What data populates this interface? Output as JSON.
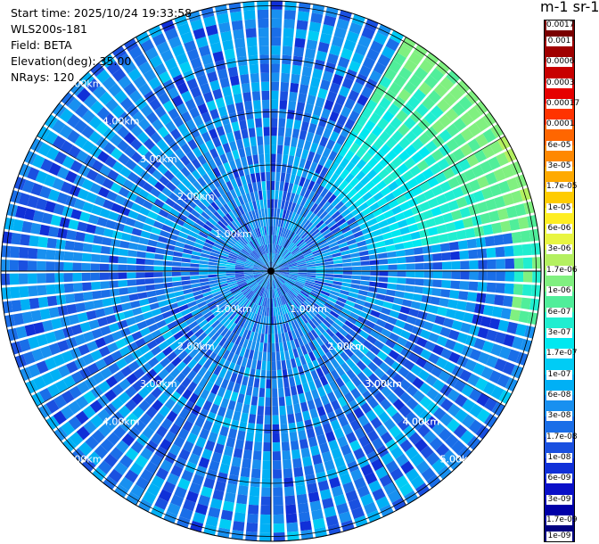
{
  "info": {
    "start_time": "Start time: 2025/10/24 19:33:58",
    "instrument": "WLS200s-181",
    "field": "Field: BETA",
    "elevation": "Elevation(deg): 35.00",
    "nrays": "NRays: 120"
  },
  "colorbar": {
    "unit_label": "m-1 sr-1",
    "ticks": [
      "0.0017",
      "0.001",
      "0.0006",
      "0.0003",
      "0.00017",
      "0.0001",
      "6e-05",
      "3e-05",
      "1.7e-05",
      "1e-05",
      "6e-06",
      "3e-06",
      "1.7e-06",
      "1e-06",
      "6e-07",
      "3e-07",
      "1.7e-07",
      "1e-07",
      "6e-08",
      "3e-08",
      "1.7e-08",
      "1e-08",
      "6e-09",
      "3e-09",
      "1.7e-09",
      "1e-09"
    ],
    "colors": [
      "#7a0000",
      "#a00000",
      "#c80000",
      "#e60000",
      "#ff3300",
      "#ff6600",
      "#ff8800",
      "#ffaa00",
      "#ffcc00",
      "#ffee22",
      "#e8f542",
      "#b4f060",
      "#80f080",
      "#50ee9a",
      "#20eed0",
      "#00e8f0",
      "#00ccf5",
      "#00b0f5",
      "#1890f0",
      "#1a6ee8",
      "#1a50e0",
      "#1030d8",
      "#0a10c8",
      "#0000a8",
      "#000080"
    ]
  },
  "polar": {
    "ring_labels": [
      "1.00km",
      "2.00km",
      "3.00km",
      "4.00km",
      "5.00km"
    ]
  },
  "chart_data": {
    "type": "heatmap",
    "projection": "polar (PPI scan)",
    "title": "",
    "field": "BETA",
    "elevation_deg": 35.0,
    "n_rays": 120,
    "range_rings_km": [
      1.0,
      2.0,
      3.0,
      4.0,
      5.0
    ],
    "colorbar_range": [
      1e-09,
      0.0017
    ],
    "colorbar_scale": "log",
    "dominant_value_range": [
      1e-08,
      1e-07
    ],
    "enhanced_sector": {
      "azimuth_deg": [
        30,
        80
      ],
      "value_range": [
        1e-07,
        1.7e-06
      ]
    },
    "grid": true
  }
}
